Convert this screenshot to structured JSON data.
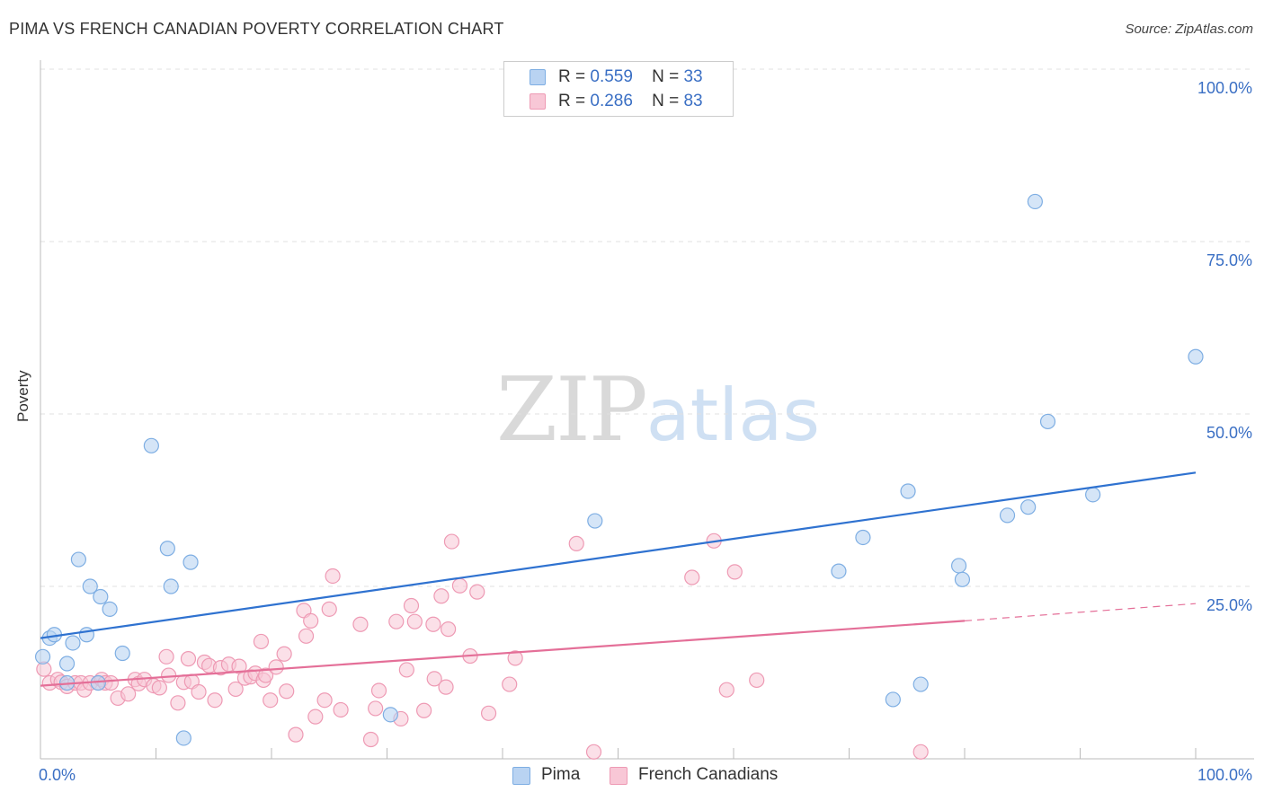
{
  "header": {
    "title": "PIMA VS FRENCH CANADIAN POVERTY CORRELATION CHART",
    "source": "Source: ZipAtlas.com"
  },
  "watermark": {
    "zip": "ZIP",
    "atlas": "atlas"
  },
  "legend": {
    "r_label": "R =",
    "n_label": "N =",
    "pima": {
      "r": "0.559",
      "n": "33"
    },
    "french": {
      "r": "0.286",
      "n": "83"
    }
  },
  "colors": {
    "pima_fill": "#b9d3f2",
    "pima_stroke": "#7eaee3",
    "pima_line": "#2f72d0",
    "french_fill": "#f8c7d6",
    "french_stroke": "#ee9ab4",
    "french_line": "#e46f98",
    "axis_label": "#3a6fc4",
    "grid": "#e0e0e0"
  },
  "chart_data": {
    "type": "scatter",
    "xlabel": "",
    "ylabel": "Poverty",
    "xlim": [
      0,
      100
    ],
    "ylim": [
      0,
      100
    ],
    "x_tick_labels": [
      "0.0%",
      "100.0%"
    ],
    "y_tick_labels": [
      "25.0%",
      "50.0%",
      "75.0%",
      "100.0%"
    ],
    "y_ticks": [
      25,
      50,
      75,
      100
    ],
    "grid": true,
    "legend_position": "top-center",
    "series": [
      {
        "name": "Pima",
        "r": 0.559,
        "n": 33,
        "trend": {
          "x": [
            0,
            100
          ],
          "y": [
            17.5,
            41.5
          ]
        },
        "points": [
          [
            0.2,
            14.8
          ],
          [
            0.8,
            17.5
          ],
          [
            1.2,
            18.0
          ],
          [
            2.3,
            11.0
          ],
          [
            2.3,
            13.8
          ],
          [
            2.8,
            16.8
          ],
          [
            3.3,
            28.9
          ],
          [
            4.0,
            18.0
          ],
          [
            4.3,
            25.0
          ],
          [
            5.2,
            23.5
          ],
          [
            5.0,
            11.0
          ],
          [
            6.0,
            21.7
          ],
          [
            7.1,
            15.3
          ],
          [
            9.6,
            45.4
          ],
          [
            11.0,
            30.5
          ],
          [
            11.3,
            25.0
          ],
          [
            12.4,
            3.0
          ],
          [
            13.0,
            28.5
          ],
          [
            30.3,
            6.4
          ],
          [
            48.0,
            34.5
          ],
          [
            69.1,
            27.2
          ],
          [
            71.2,
            32.1
          ],
          [
            73.8,
            8.6
          ],
          [
            75.1,
            38.8
          ],
          [
            76.2,
            10.8
          ],
          [
            79.5,
            28.0
          ],
          [
            79.8,
            26.0
          ],
          [
            83.7,
            35.3
          ],
          [
            85.5,
            36.5
          ],
          [
            86.1,
            80.8
          ],
          [
            87.2,
            48.9
          ],
          [
            91.1,
            38.3
          ],
          [
            100.0,
            58.3
          ]
        ]
      },
      {
        "name": "French Canadians",
        "r": 0.286,
        "n": 83,
        "trend": {
          "x": [
            0,
            80
          ],
          "y": [
            10.6,
            20.0
          ]
        },
        "trend_extension": {
          "x": [
            80,
            100
          ],
          "y": [
            20.0,
            22.5
          ]
        },
        "points": [
          [
            0.3,
            13.0
          ],
          [
            0.8,
            11.0
          ],
          [
            1.5,
            11.5
          ],
          [
            1.8,
            11.1
          ],
          [
            2.3,
            10.5
          ],
          [
            3.0,
            11.0
          ],
          [
            3.5,
            11.0
          ],
          [
            3.8,
            10.0
          ],
          [
            4.3,
            11.0
          ],
          [
            5.0,
            11.0
          ],
          [
            5.3,
            11.5
          ],
          [
            5.6,
            11.0
          ],
          [
            6.1,
            11.0
          ],
          [
            6.7,
            8.8
          ],
          [
            7.6,
            9.4
          ],
          [
            8.2,
            11.5
          ],
          [
            8.5,
            10.9
          ],
          [
            9.0,
            11.5
          ],
          [
            9.8,
            10.6
          ],
          [
            10.3,
            10.3
          ],
          [
            10.9,
            14.8
          ],
          [
            11.1,
            12.1
          ],
          [
            11.9,
            8.1
          ],
          [
            12.4,
            11.1
          ],
          [
            12.8,
            14.5
          ],
          [
            13.1,
            11.2
          ],
          [
            13.7,
            9.7
          ],
          [
            14.2,
            14.0
          ],
          [
            14.6,
            13.5
          ],
          [
            15.1,
            8.5
          ],
          [
            15.6,
            13.2
          ],
          [
            16.3,
            13.7
          ],
          [
            16.9,
            10.1
          ],
          [
            17.2,
            13.4
          ],
          [
            17.7,
            11.7
          ],
          [
            18.2,
            11.9
          ],
          [
            18.6,
            12.4
          ],
          [
            19.3,
            11.4
          ],
          [
            19.1,
            17.0
          ],
          [
            19.5,
            12.1
          ],
          [
            19.9,
            8.5
          ],
          [
            20.4,
            13.3
          ],
          [
            21.1,
            15.2
          ],
          [
            21.3,
            9.8
          ],
          [
            22.1,
            3.5
          ],
          [
            22.8,
            21.5
          ],
          [
            23.0,
            17.8
          ],
          [
            23.4,
            20.0
          ],
          [
            23.8,
            6.1
          ],
          [
            24.6,
            8.5
          ],
          [
            25.0,
            21.7
          ],
          [
            25.3,
            26.5
          ],
          [
            26.0,
            7.1
          ],
          [
            27.7,
            19.5
          ],
          [
            28.6,
            2.8
          ],
          [
            29.0,
            7.3
          ],
          [
            29.3,
            9.9
          ],
          [
            30.8,
            19.9
          ],
          [
            31.2,
            5.8
          ],
          [
            31.7,
            12.9
          ],
          [
            32.1,
            22.2
          ],
          [
            32.4,
            19.9
          ],
          [
            33.2,
            7.0
          ],
          [
            34.0,
            19.5
          ],
          [
            34.1,
            11.6
          ],
          [
            34.7,
            23.6
          ],
          [
            35.1,
            10.4
          ],
          [
            35.3,
            18.8
          ],
          [
            35.6,
            31.5
          ],
          [
            36.3,
            25.1
          ],
          [
            37.2,
            14.9
          ],
          [
            37.8,
            24.2
          ],
          [
            38.8,
            6.6
          ],
          [
            40.6,
            10.8
          ],
          [
            41.1,
            14.6
          ],
          [
            46.4,
            31.2
          ],
          [
            47.9,
            1.0
          ],
          [
            56.4,
            26.3
          ],
          [
            58.3,
            31.6
          ],
          [
            59.4,
            10.0
          ],
          [
            60.1,
            27.1
          ],
          [
            62.0,
            11.4
          ],
          [
            76.2,
            1.0
          ]
        ]
      }
    ]
  },
  "bottom_legend": {
    "pima": "Pima",
    "french": "French Canadians"
  }
}
